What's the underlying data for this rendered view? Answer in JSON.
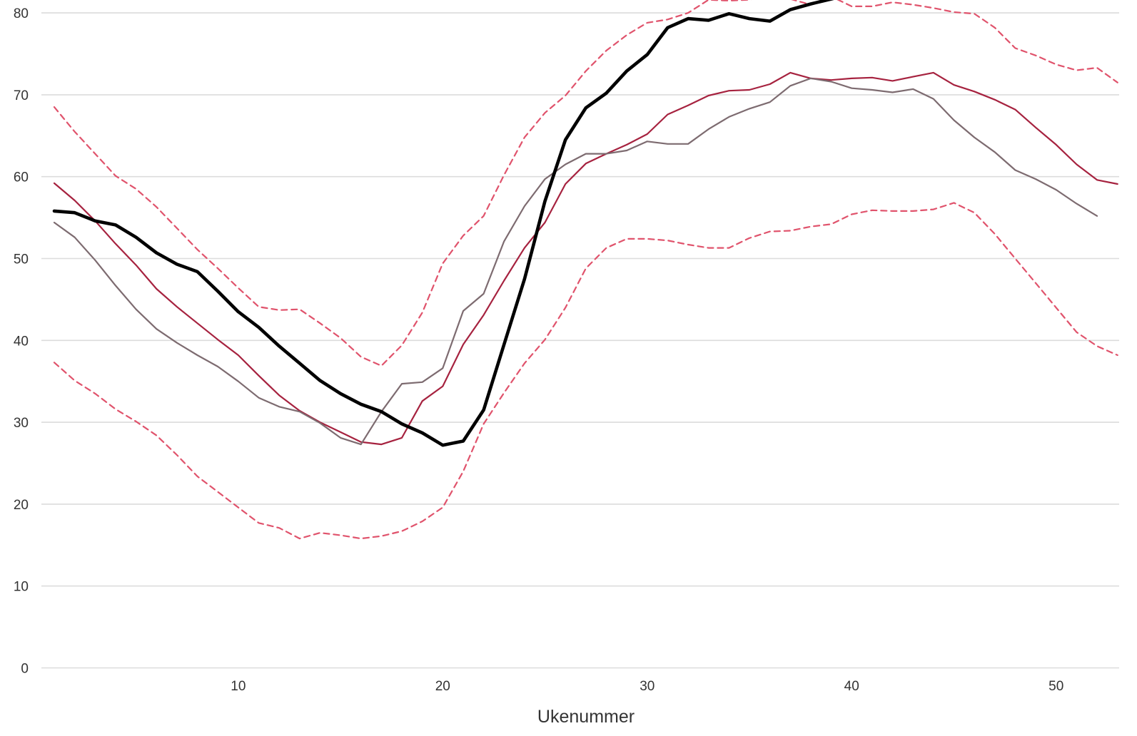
{
  "chart_data": {
    "type": "line",
    "title": "",
    "xlabel": "Ukenummer",
    "ylabel": "",
    "xlim": [
      0,
      53
    ],
    "ylim": [
      0,
      80
    ],
    "x_ticks": [
      10,
      20,
      30,
      40,
      50
    ],
    "y_ticks": [
      0,
      10,
      20,
      30,
      40,
      50,
      60,
      70,
      80
    ],
    "grid": "horizontal",
    "series": [
      {
        "color": "#e0536c",
        "style": "dashed",
        "width": 2.2,
        "x": [
          1,
          2,
          3,
          4,
          5,
          6,
          7,
          8,
          9,
          10,
          11,
          12,
          13,
          14,
          15,
          16,
          17,
          18,
          19,
          20,
          21,
          22,
          23,
          24,
          25,
          26,
          27,
          28,
          29,
          30,
          31,
          32,
          33,
          34,
          35,
          36,
          37,
          38,
          39,
          40,
          41,
          42,
          43,
          44,
          45,
          46,
          47,
          48,
          49,
          50,
          51,
          52,
          53
        ],
        "values": [
          68.5,
          65.5,
          62.8,
          60.1,
          58.5,
          56.3,
          53.7,
          51.1,
          48.8,
          46.4,
          44.1,
          43.7,
          43.8,
          42.1,
          40.3,
          38.0,
          36.9,
          39.4,
          43.4,
          49.4,
          52.8,
          55.2,
          60.2,
          64.8,
          67.8,
          69.9,
          72.9,
          75.4,
          77.3,
          78.8,
          79.2,
          80.0,
          81.6,
          81.5,
          81.6,
          82.2,
          81.7,
          81.0,
          82.0,
          80.8,
          80.8,
          81.3,
          81.0,
          80.6,
          80.1,
          79.9,
          78.2,
          75.7,
          74.8,
          73.7,
          73.0,
          73.3,
          71.5
        ]
      },
      {
        "color": "#e0536c",
        "style": "dashed",
        "width": 2.2,
        "x": [
          1,
          2,
          3,
          4,
          5,
          6,
          7,
          8,
          9,
          10,
          11,
          12,
          13,
          14,
          15,
          16,
          17,
          18,
          19,
          20,
          21,
          22,
          23,
          24,
          25,
          26,
          27,
          28,
          29,
          30,
          31,
          32,
          33,
          34,
          35,
          36,
          37,
          38,
          39,
          40,
          41,
          42,
          43,
          44,
          45,
          46,
          47,
          48,
          49,
          50,
          51,
          52,
          53
        ],
        "values": [
          37.3,
          35.1,
          33.5,
          31.6,
          30.1,
          28.4,
          26.0,
          23.4,
          21.5,
          19.6,
          17.7,
          17.1,
          15.8,
          16.5,
          16.2,
          15.8,
          16.1,
          16.7,
          17.9,
          19.6,
          24.0,
          29.8,
          33.6,
          37.2,
          40.1,
          44.0,
          48.8,
          51.3,
          52.4,
          52.4,
          52.2,
          51.7,
          51.3,
          51.3,
          52.5,
          53.3,
          53.4,
          53.9,
          54.2,
          55.4,
          55.9,
          55.8,
          55.8,
          56.0,
          56.8,
          55.6,
          53.0,
          50.0,
          47.0,
          44.0,
          41.0,
          39.3,
          38.2
        ]
      },
      {
        "color": "#a6223f",
        "style": "solid",
        "width": 2.2,
        "x": [
          1,
          2,
          3,
          4,
          5,
          6,
          7,
          8,
          9,
          10,
          11,
          12,
          13,
          14,
          15,
          16,
          17,
          18,
          19,
          20,
          21,
          22,
          23,
          24,
          25,
          26,
          27,
          28,
          29,
          30,
          31,
          32,
          33,
          34,
          35,
          36,
          37,
          38,
          39,
          40,
          41,
          42,
          43,
          44,
          45,
          46,
          47,
          48,
          49,
          50,
          51,
          52,
          53
        ],
        "values": [
          59.2,
          57.1,
          54.6,
          51.8,
          49.2,
          46.3,
          44.1,
          42.1,
          40.1,
          38.2,
          35.7,
          33.3,
          31.4,
          30.0,
          28.8,
          27.6,
          27.3,
          28.1,
          32.6,
          34.4,
          39.5,
          43.1,
          47.3,
          51.3,
          54.4,
          59.1,
          61.6,
          62.8,
          63.9,
          65.2,
          67.6,
          68.7,
          69.9,
          70.5,
          70.6,
          71.3,
          72.7,
          72.0,
          71.8,
          72.0,
          72.1,
          71.7,
          72.2,
          72.7,
          71.2,
          70.4,
          69.4,
          68.2,
          66.0,
          63.9,
          61.5,
          59.6,
          59.1
        ]
      },
      {
        "color": "#7d6b70",
        "style": "solid",
        "width": 2.2,
        "x": [
          1,
          2,
          3,
          4,
          5,
          6,
          7,
          8,
          9,
          10,
          11,
          12,
          13,
          14,
          15,
          16,
          17,
          18,
          19,
          20,
          21,
          22,
          23,
          24,
          25,
          26,
          27,
          28,
          29,
          30,
          31,
          32,
          33,
          34,
          35,
          36,
          37,
          38,
          39,
          40,
          41,
          42,
          43,
          44,
          45,
          46,
          47,
          48,
          49,
          50,
          51,
          52
        ],
        "values": [
          54.4,
          52.6,
          49.8,
          46.7,
          43.8,
          41.4,
          39.7,
          38.2,
          36.8,
          35.0,
          33.0,
          31.9,
          31.3,
          29.9,
          28.1,
          27.3,
          31.3,
          34.7,
          34.9,
          36.6,
          43.6,
          45.7,
          52.1,
          56.4,
          59.7,
          61.5,
          62.8,
          62.8,
          63.2,
          64.3,
          64.0,
          64.0,
          65.8,
          67.3,
          68.3,
          69.1,
          71.1,
          72.0,
          71.6,
          70.8,
          70.6,
          70.3,
          70.7,
          69.5,
          66.9,
          64.8,
          63.0,
          60.8,
          59.7,
          58.4,
          56.7,
          55.2
        ]
      },
      {
        "color": "#000000",
        "style": "solid",
        "width": 4.6,
        "x": [
          1,
          2,
          3,
          4,
          5,
          6,
          7,
          8,
          9,
          10,
          11,
          12,
          13,
          14,
          15,
          16,
          17,
          18,
          19,
          20,
          21,
          22,
          23,
          24,
          25,
          26,
          27,
          28,
          29,
          30,
          31,
          32,
          33,
          34,
          35,
          36,
          37,
          38,
          39,
          40
        ],
        "values": [
          55.8,
          55.6,
          54.6,
          54.1,
          52.6,
          50.7,
          49.3,
          48.4,
          46.0,
          43.5,
          41.6,
          39.3,
          37.2,
          35.1,
          33.5,
          32.2,
          31.3,
          29.8,
          28.7,
          27.2,
          27.7,
          31.5,
          39.5,
          47.5,
          57.0,
          64.5,
          68.4,
          70.2,
          72.9,
          74.9,
          78.2,
          79.3,
          79.1,
          79.9,
          79.3,
          79.0,
          80.4,
          81.1,
          81.7,
          82.3
        ]
      }
    ]
  }
}
